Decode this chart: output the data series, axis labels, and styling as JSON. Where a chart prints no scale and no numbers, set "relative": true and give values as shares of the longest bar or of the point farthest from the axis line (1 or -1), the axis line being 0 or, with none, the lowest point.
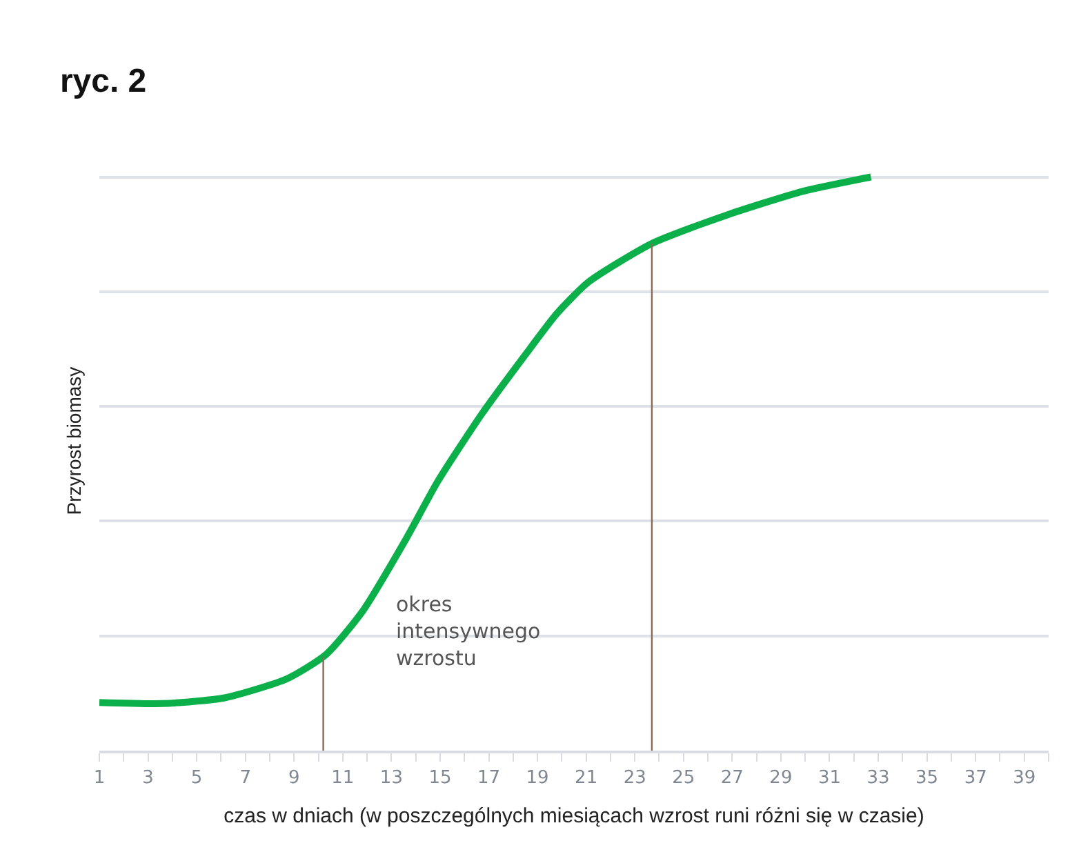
{
  "chart_data": {
    "type": "line",
    "title": "ryc. 2",
    "xlabel": "czas w dniach (w poszczególnych miesiącach wzrost runi różni się w czasie)",
    "ylabel": "Przyrost biomasy",
    "relative": true,
    "grid": "y",
    "legend": false,
    "marker": "none",
    "line_style": "solid",
    "xlim": [
      1,
      40
    ],
    "xticks": [
      1,
      {
        "value": 2,
        "label": null
      },
      3,
      {
        "value": 4,
        "label": null
      },
      5,
      {
        "value": 6,
        "label": null
      },
      7,
      {
        "value": 8,
        "label": null
      },
      9,
      {
        "value": 10,
        "label": null
      },
      11,
      {
        "value": 12,
        "label": null
      },
      13,
      {
        "value": 14,
        "label": null
      },
      15,
      {
        "value": 16,
        "label": null
      },
      17,
      {
        "value": 18,
        "label": null
      },
      19,
      {
        "value": 20,
        "label": null
      },
      21,
      {
        "value": 22,
        "label": null
      },
      23,
      {
        "value": 24,
        "label": null
      },
      25,
      {
        "value": 26,
        "label": null
      },
      27,
      {
        "value": 28,
        "label": null
      },
      29,
      {
        "value": 30,
        "label": null
      },
      31,
      {
        "value": 32,
        "label": null
      },
      33,
      {
        "value": 34,
        "label": null
      },
      35,
      {
        "value": 36,
        "label": null
      },
      37,
      {
        "value": 38,
        "label": null
      },
      39,
      {
        "value": 40,
        "label": null
      }
    ],
    "x": [
      1,
      3.6,
      6.15,
      8.7,
      10.3,
      11.8,
      13.6,
      14.9,
      16.7,
      18.5,
      19.8,
      21.1,
      23.7,
      26.8,
      29.9,
      32.7
    ],
    "series": [
      {
        "color": "#0bb04b",
        "values": [
          0.084,
          0.082,
          0.092,
          0.125,
          0.167,
          0.242,
          0.369,
          0.469,
          0.586,
          0.69,
          0.762,
          0.817,
          0.884,
          0.934,
          0.975,
          1.0
        ]
      }
    ],
    "ref_lines": [
      {
        "axis": "x",
        "value": 10.2,
        "color": "#8b6a55"
      },
      {
        "axis": "x",
        "value": 23.7,
        "color": "#8b6a55"
      }
    ],
    "annotations": [
      "okres\nintensywnego\nwzrostu"
    ]
  }
}
